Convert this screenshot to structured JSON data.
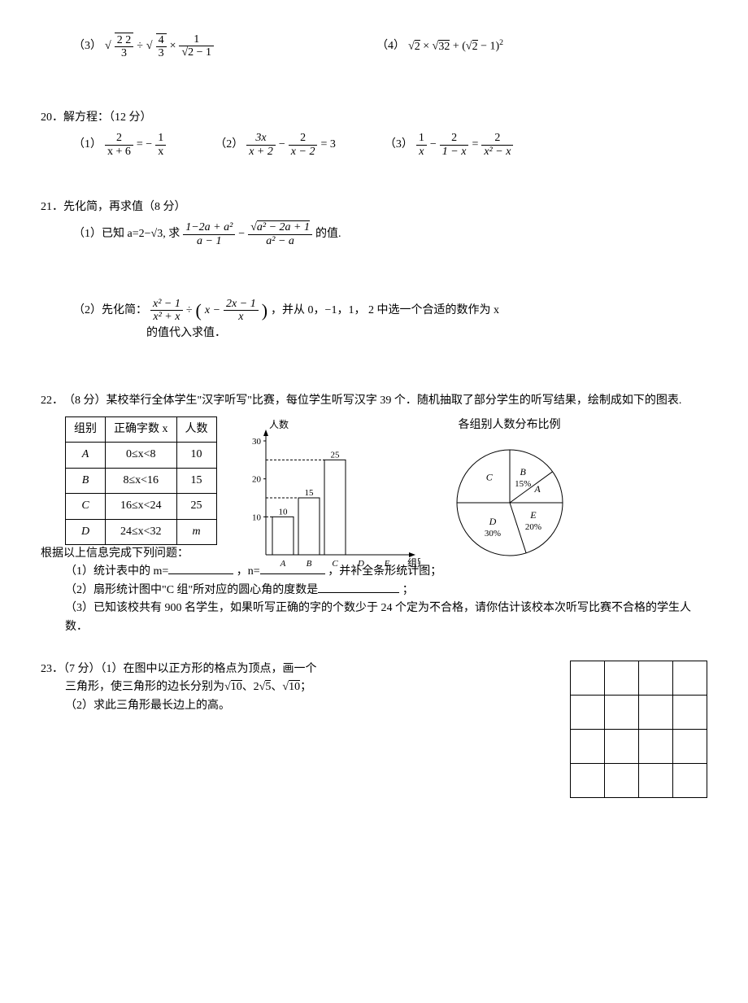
{
  "q19": {
    "item3_label": "（3）",
    "item4_label": "（4）",
    "expr3_parts": {
      "a": "2",
      "b_num": "2",
      "b_den": "3",
      "c_num": "4",
      "c_den": "3",
      "d_num": "1",
      "d_den_l": "2",
      "d_den_r": " − 1"
    },
    "expr4": "√2 × √32 + (√2 − 1)²"
  },
  "q20": {
    "num": "20．",
    "title": "解方程：（12 分）",
    "item1_label": "（1）",
    "item2_label": "（2）",
    "item3_label": "（3）",
    "e1": {
      "l_num": "2",
      "l_den": "x + 6",
      "r_num": "1",
      "r_den": "x"
    },
    "e2": {
      "a_num": "3x",
      "a_den": "x + 2",
      "b_num": "2",
      "b_den": "x − 2",
      "rhs": "= 3"
    },
    "e3": {
      "a_num": "1",
      "a_den": "x",
      "b_num": "2",
      "b_den": "1 − x",
      "c_num": "2",
      "c_den": "x² − x"
    }
  },
  "q21": {
    "num": "21．",
    "title": "先化简，再求值（8 分）",
    "item1_pre": "（1）已知 a=2−√3, 求",
    "item1_post": " 的值.",
    "f1": {
      "a_num": "1−2a + a²",
      "a_den": "a − 1",
      "b_num_inner": "a² − 2a + 1",
      "b_den": "a² − a"
    },
    "item2_pre": "（2）先化简：",
    "item2_post": "，并从 0，−1，1， 2 中选一个合适的数作为 x",
    "item2_line2": "的值代入求值．",
    "f2": {
      "a_num": "x² − 1",
      "a_den": "x² + x",
      "b_inner_num": "2x − 1",
      "b_inner_den": "x"
    }
  },
  "q22": {
    "num": "22．",
    "title": "（8 分）某校举行全体学生\"汉字听写\"比赛，每位学生听写汉字 39 个．随机抽取了部分学生的听写结果，绘制成如下的图表.",
    "table": {
      "headers": [
        "组别",
        "正确字数 x",
        "人数"
      ],
      "rows": [
        [
          "A",
          "0≤x<8",
          "10"
        ],
        [
          "B",
          "8≤x<16",
          "15"
        ],
        [
          "C",
          "16≤x<24",
          "25"
        ],
        [
          "D",
          "24≤x<32",
          "m"
        ]
      ]
    },
    "bar": {
      "ylabel": "人数",
      "xlabel": "组别",
      "yticks": [
        "10",
        "20",
        "30"
      ],
      "cats": [
        "A",
        "B",
        "C",
        "D",
        "E"
      ],
      "vals": [
        10,
        15,
        25,
        null,
        null
      ],
      "val_labels": [
        "10",
        "15",
        "25",
        "",
        ""
      ],
      "ymax": 30,
      "axis_color": "#000",
      "bar_fill": "#ffffff",
      "bar_stroke": "#000"
    },
    "pie": {
      "title": "各组别人数分布比例",
      "slices": [
        {
          "label": "B",
          "pct": "15%",
          "start": -90,
          "end": -36
        },
        {
          "label": "A",
          "pct": "",
          "start": -36,
          "end": 0
        },
        {
          "label": "E",
          "pct": "20%",
          "start": 0,
          "end": 72
        },
        {
          "label": "D",
          "pct": "30%",
          "start": 72,
          "end": 180
        },
        {
          "label": "C",
          "pct": "",
          "start": 180,
          "end": 270
        }
      ],
      "stroke": "#000",
      "fill": "#ffffff"
    },
    "footer_lead": "根据以上信息完成下列问题：",
    "q1_a": "（1）统计表中的 m=",
    "q1_b": "，n=",
    "q1_c": "，并补全条形统计图；",
    "q2_a": "（2）扇形统计图中\"C 组\"所对应的圆心角的度数是",
    "q2_b": "；",
    "q3": "（3）已知该校共有 900 名学生，如果听写正确的字的个数少于 24 个定为不合格，请你估计该校本次听写比赛不合格的学生人数．"
  },
  "q23": {
    "num": "23．",
    "line1_a": "（7 分）（1）在图中以正方形的格点为顶点，画一个",
    "line1_b": "三角形，使三角形的边长分别为√10、2√5、√10；",
    "line2": "（2）求此三角形最长边上的高。",
    "grid": {
      "rows": 4,
      "cols": 4
    }
  }
}
